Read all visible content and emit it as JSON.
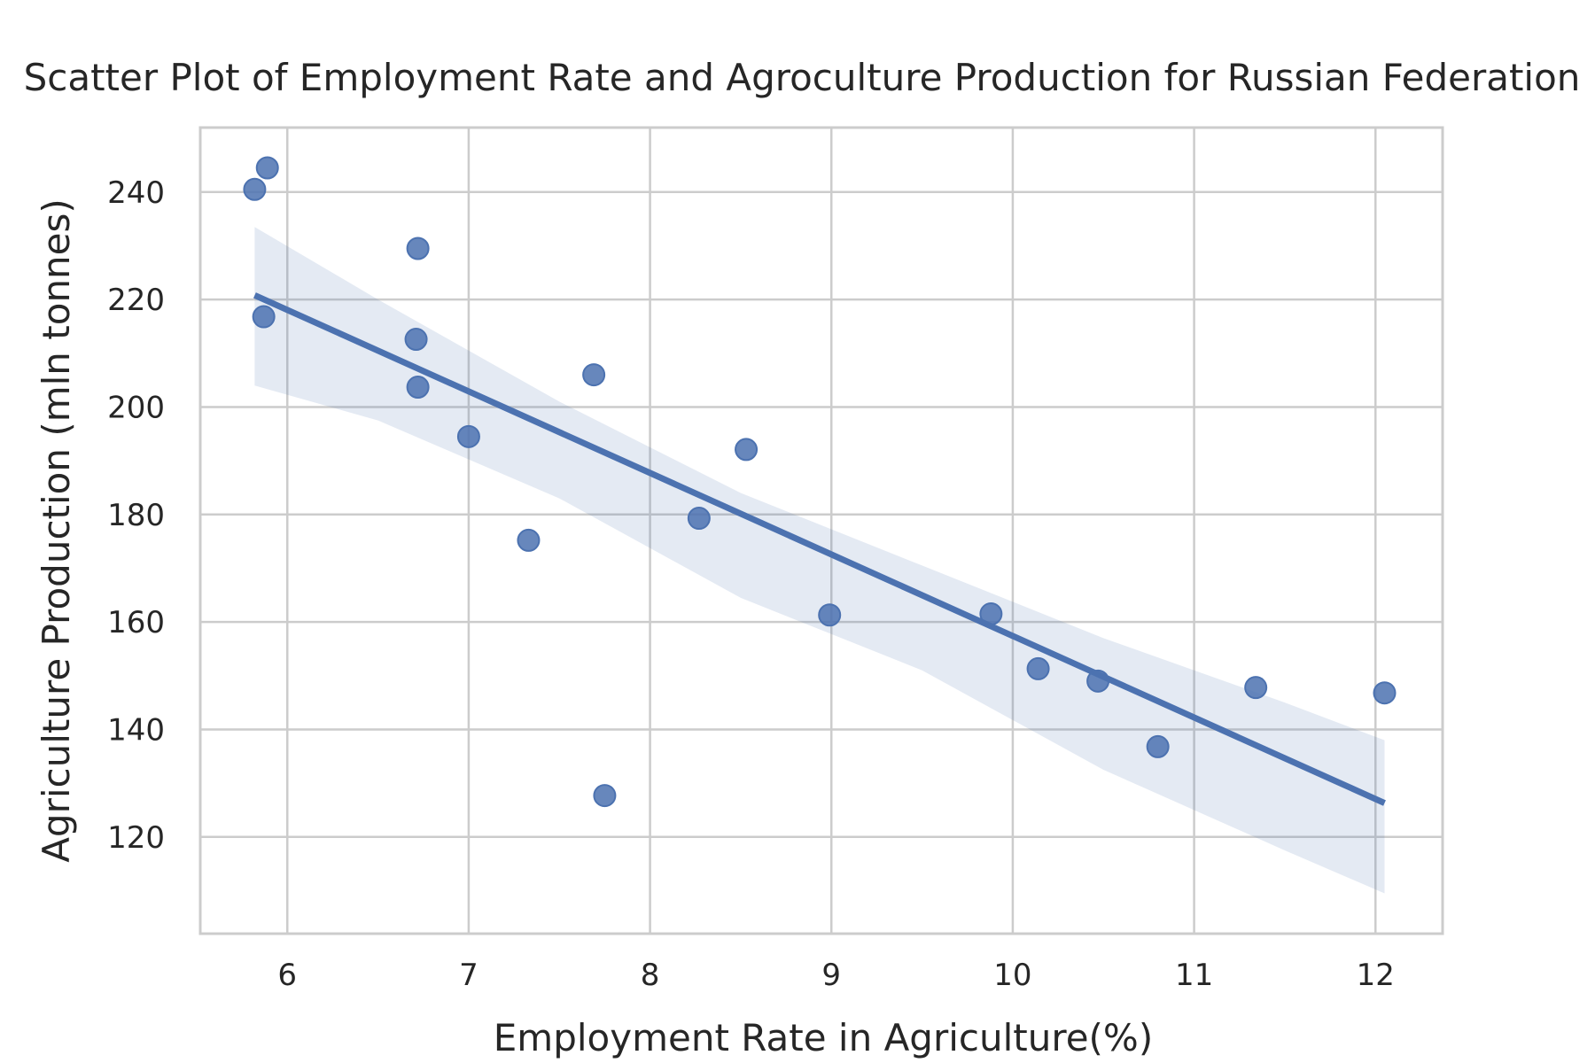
{
  "chart_data": {
    "type": "scatter",
    "title": "Scatter Plot of Employment Rate and Agroculture Production for Russian Federation",
    "xlabel": "Employment Rate in Agriculture(%)",
    "ylabel": "Agriculture Production (mln tonnes)",
    "xlim": [
      5.52,
      12.37
    ],
    "ylim": [
      102,
      252
    ],
    "xticks": [
      6,
      7,
      8,
      9,
      10,
      11,
      12
    ],
    "yticks": [
      120,
      140,
      160,
      180,
      200,
      220,
      240
    ],
    "grid": true,
    "point_color": "#4c72b0",
    "band_color": "#4c72b0",
    "points": [
      {
        "x": 5.82,
        "y": 240.5
      },
      {
        "x": 5.89,
        "y": 244.5
      },
      {
        "x": 5.87,
        "y": 216.8
      },
      {
        "x": 6.72,
        "y": 229.5
      },
      {
        "x": 6.71,
        "y": 212.6
      },
      {
        "x": 6.72,
        "y": 203.7
      },
      {
        "x": 7.0,
        "y": 194.5
      },
      {
        "x": 7.33,
        "y": 175.2
      },
      {
        "x": 7.69,
        "y": 206.0
      },
      {
        "x": 7.75,
        "y": 127.7
      },
      {
        "x": 8.27,
        "y": 179.3
      },
      {
        "x": 8.53,
        "y": 192.1
      },
      {
        "x": 8.99,
        "y": 161.3
      },
      {
        "x": 9.88,
        "y": 161.5
      },
      {
        "x": 10.14,
        "y": 151.3
      },
      {
        "x": 10.47,
        "y": 149.0
      },
      {
        "x": 10.8,
        "y": 136.8
      },
      {
        "x": 11.34,
        "y": 147.8
      },
      {
        "x": 12.05,
        "y": 146.8
      }
    ],
    "regression": {
      "x_start": 5.82,
      "y_start": 220.8,
      "x_end": 12.05,
      "y_end": 126.3
    },
    "confidence_band": {
      "x": [
        5.82,
        6.5,
        7.5,
        8.5,
        9.5,
        10.5,
        11.5,
        12.05
      ],
      "upper": [
        233.5,
        220.0,
        201.0,
        184.0,
        170.5,
        157.0,
        145.0,
        138.0
      ],
      "lower": [
        204.0,
        197.5,
        183.0,
        164.5,
        151.0,
        132.5,
        117.5,
        109.5
      ]
    }
  }
}
